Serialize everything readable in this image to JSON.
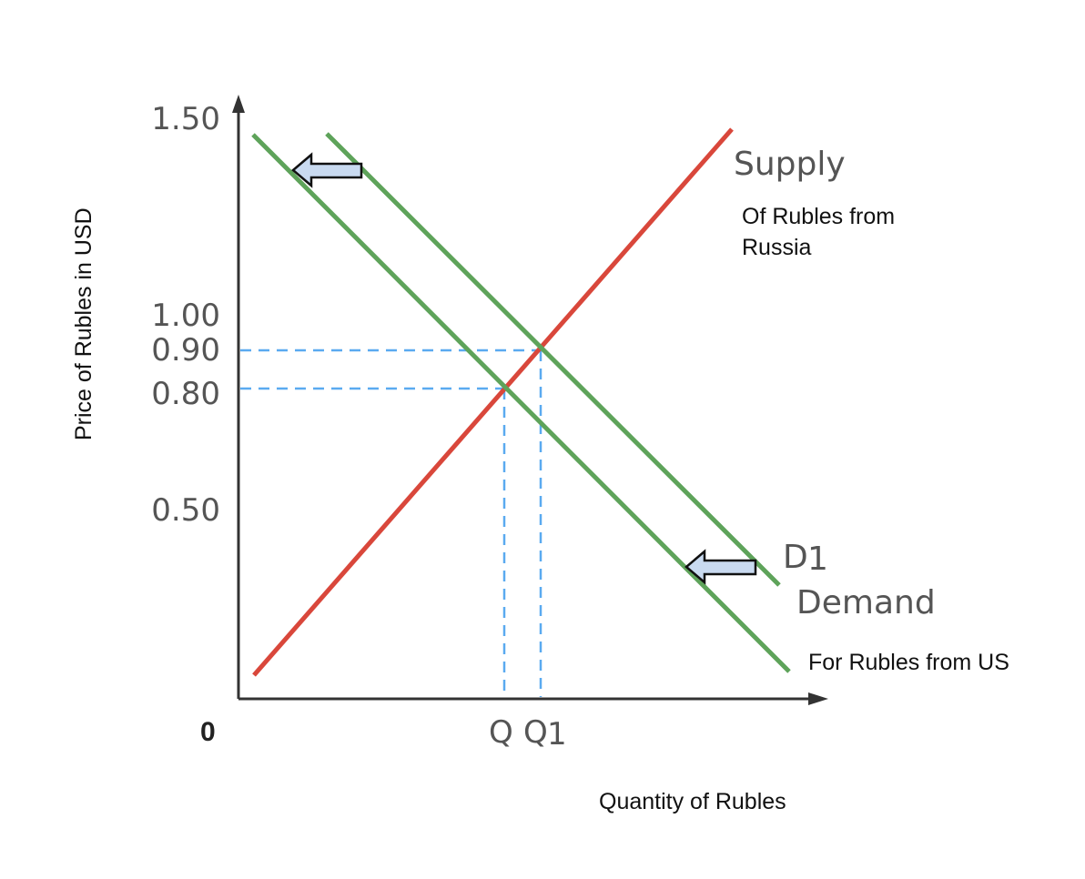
{
  "axes": {
    "y_title": "Price of Rubles in USD",
    "x_title": "Quantity of Rubles",
    "origin": "0",
    "y_ticks": [
      "1.50",
      "1.00",
      "0.90",
      "0.80",
      "0.50"
    ]
  },
  "curves": {
    "supply_label": "Supply",
    "supply_note_line1": "Of Rubles from",
    "supply_note_line2": "Russia",
    "d1_label": "D",
    "d1_subscript": "1",
    "demand_label": "Demand",
    "demand_note": "For Rubles from US"
  },
  "quantities": {
    "q": "Q",
    "q1": "Q",
    "q1_subscript": "1"
  },
  "colors": {
    "supply": "#d9473b",
    "demand": "#5ea35a",
    "guides": "#5aaaf0",
    "arrow_fill": "#c9daf0",
    "axis": "#333333"
  }
}
